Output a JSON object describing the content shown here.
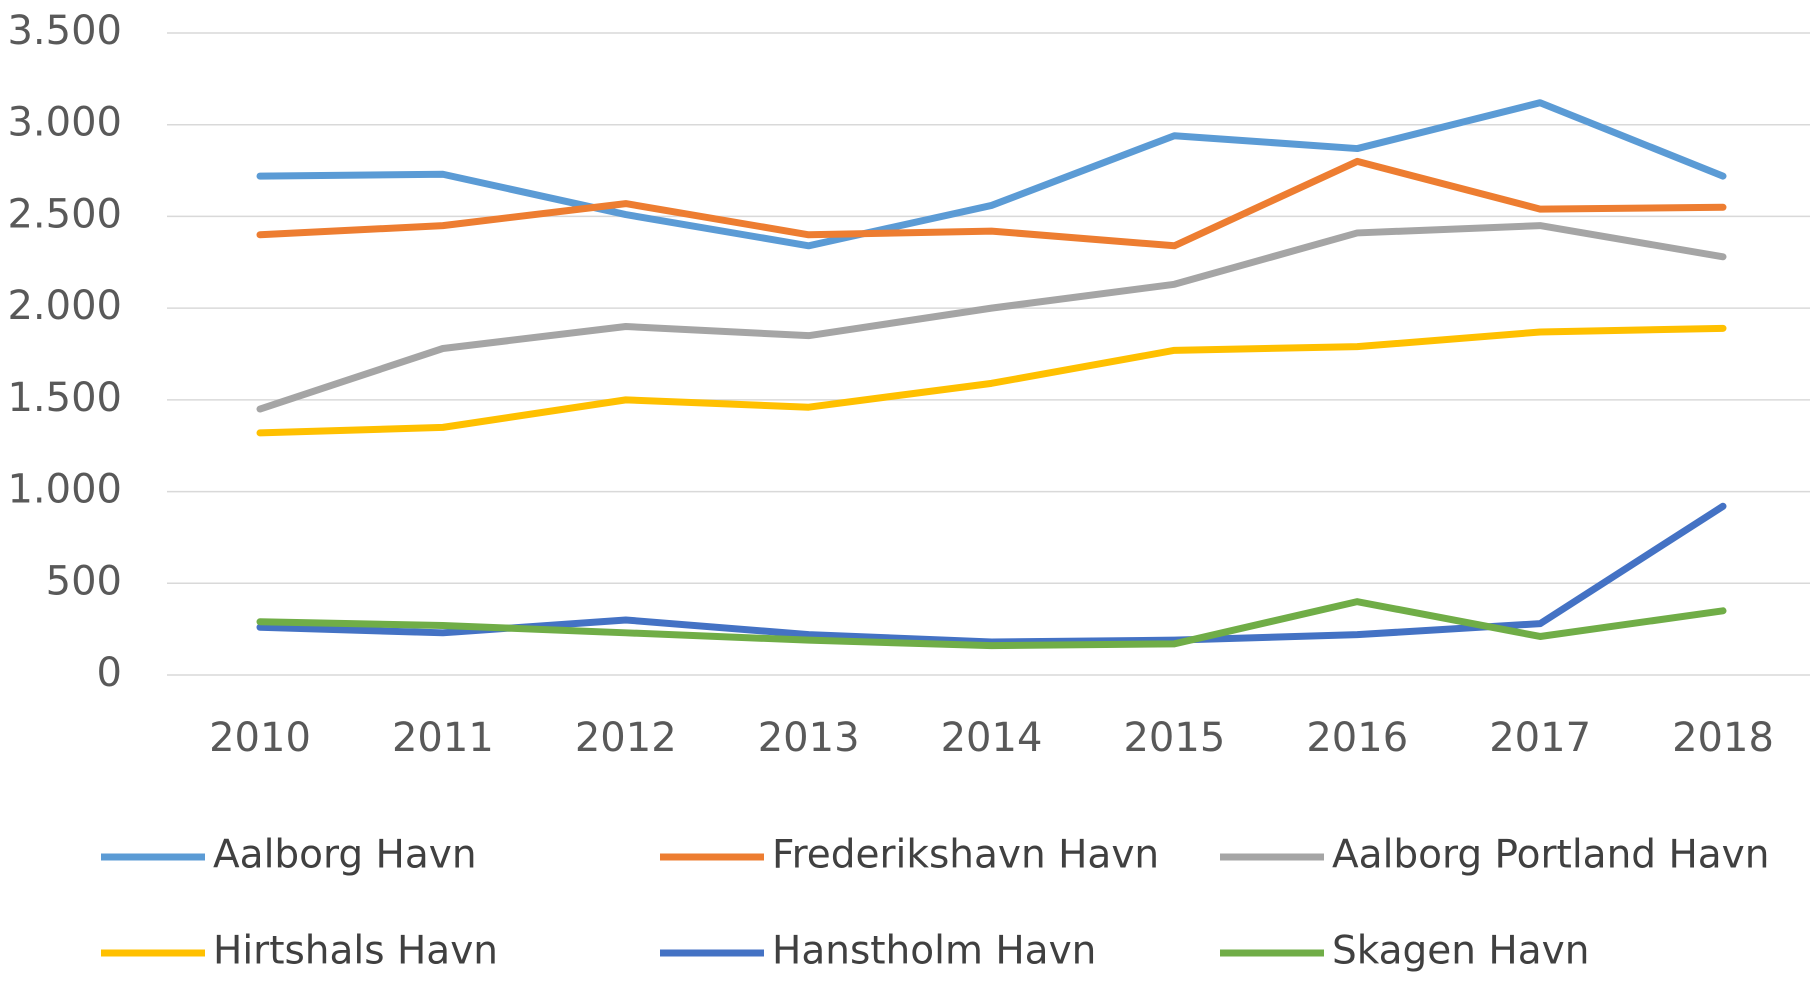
{
  "chart_data": {
    "type": "line",
    "categories": [
      "2010",
      "2011",
      "2012",
      "2013",
      "2014",
      "2015",
      "2016",
      "2017",
      "2018"
    ],
    "series": [
      {
        "name": "Aalborg Havn",
        "color": "#5b9bd5",
        "values": [
          2720,
          2730,
          2510,
          2340,
          2560,
          2940,
          2870,
          3120,
          2720
        ]
      },
      {
        "name": "Frederikshavn Havn",
        "color": "#ed7d31",
        "values": [
          2400,
          2450,
          2570,
          2400,
          2420,
          2340,
          2800,
          2540,
          2550
        ]
      },
      {
        "name": "Aalborg Portland Havn",
        "color": "#a5a5a5",
        "values": [
          1450,
          1780,
          1900,
          1850,
          2000,
          2130,
          2410,
          2450,
          2280
        ]
      },
      {
        "name": "Hirtshals Havn",
        "color": "#ffc000",
        "values": [
          1320,
          1350,
          1500,
          1460,
          1590,
          1770,
          1790,
          1870,
          1890
        ]
      },
      {
        "name": "Hanstholm Havn",
        "color": "#4472c4",
        "values": [
          260,
          230,
          300,
          220,
          180,
          190,
          220,
          280,
          920
        ]
      },
      {
        "name": "Skagen Havn",
        "color": "#70ad47",
        "values": [
          290,
          270,
          230,
          190,
          160,
          170,
          400,
          210,
          350
        ]
      }
    ],
    "ylim": [
      0,
      3500
    ],
    "yticks": [
      0,
      500,
      {
        "value": 1000,
        "label": "1.000"
      },
      {
        "value": 1500,
        "label": "1.500"
      },
      {
        "value": 2000,
        "label": "2.000"
      },
      {
        "value": 2500,
        "label": "2.500"
      },
      {
        "value": 3000,
        "label": "3.000"
      },
      {
        "value": 3500,
        "label": "3.500"
      }
    ],
    "grid": true
  }
}
